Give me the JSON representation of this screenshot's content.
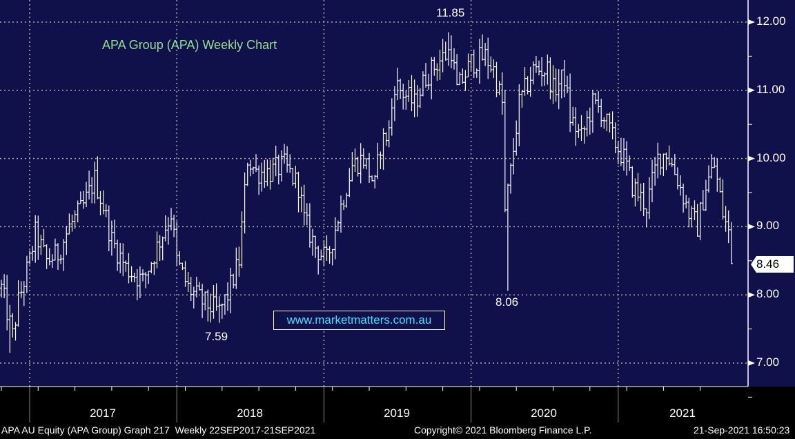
{
  "chart_data": {
    "type": "ohlc",
    "title": "APA Group (APA) Weekly Chart",
    "ylim": [
      7.0,
      12.0
    ],
    "yticks": [
      "12.00",
      "11.00",
      "10.00",
      "9.00",
      "8.00",
      "7.00"
    ],
    "ytick_values": [
      12,
      11,
      10,
      9,
      8,
      7
    ],
    "xticks": [
      "2017",
      "2018",
      "2019",
      "2020",
      "2021"
    ],
    "year_start_weeks": [
      10,
      62,
      114,
      166,
      218
    ],
    "grid": true,
    "last_price": "8.46",
    "annotations": [
      {
        "label": "11.85",
        "week": 158,
        "value": 11.85
      },
      {
        "label": "7.59",
        "week": 77,
        "value": 7.59
      },
      {
        "label": "8.06",
        "week": 178,
        "value": 8.06
      }
    ],
    "close_anchors_week_price": [
      [
        0,
        8.1
      ],
      [
        4,
        7.4
      ],
      [
        6,
        7.9
      ],
      [
        10,
        8.5
      ],
      [
        12,
        8.9
      ],
      [
        16,
        8.5
      ],
      [
        20,
        8.6
      ],
      [
        24,
        9.0
      ],
      [
        29,
        9.3
      ],
      [
        33,
        9.7
      ],
      [
        36,
        9.3
      ],
      [
        39,
        8.8
      ],
      [
        44,
        8.4
      ],
      [
        50,
        8.2
      ],
      [
        54,
        8.6
      ],
      [
        57,
        8.9
      ],
      [
        60,
        9.2
      ],
      [
        62,
        8.5
      ],
      [
        66,
        8.1
      ],
      [
        71,
        7.9
      ],
      [
        77,
        7.75
      ],
      [
        80,
        8.0
      ],
      [
        84,
        8.5
      ],
      [
        87,
        10.0
      ],
      [
        90,
        9.8
      ],
      [
        95,
        9.8
      ],
      [
        100,
        9.9
      ],
      [
        105,
        9.6
      ],
      [
        107,
        9.1
      ],
      [
        111,
        8.7
      ],
      [
        115,
        8.5
      ],
      [
        120,
        9.3
      ],
      [
        124,
        9.9
      ],
      [
        128,
        10.0
      ],
      [
        132,
        9.6
      ],
      [
        134,
        10.2
      ],
      [
        137,
        10.4
      ],
      [
        139,
        11.1
      ],
      [
        141,
        11.0
      ],
      [
        146,
        10.8
      ],
      [
        150,
        11.2
      ],
      [
        154,
        11.4
      ],
      [
        159,
        11.6
      ],
      [
        161,
        11.0
      ],
      [
        166,
        11.4
      ],
      [
        171,
        11.5
      ],
      [
        174,
        11.3
      ],
      [
        177,
        10.8
      ],
      [
        178,
        9.2
      ],
      [
        180,
        9.8
      ],
      [
        183,
        10.8
      ],
      [
        188,
        11.3
      ],
      [
        193,
        11.3
      ],
      [
        195,
        11.0
      ],
      [
        199,
        11.2
      ],
      [
        201,
        10.6
      ],
      [
        205,
        10.3
      ],
      [
        209,
        10.8
      ],
      [
        212,
        10.7
      ],
      [
        216,
        10.3
      ],
      [
        220,
        10.0
      ],
      [
        223,
        9.6
      ],
      [
        228,
        9.3
      ],
      [
        232,
        10.0
      ],
      [
        235,
        10.1
      ],
      [
        239,
        9.7
      ],
      [
        243,
        9.2
      ],
      [
        246,
        9.0
      ],
      [
        249,
        9.6
      ],
      [
        252,
        9.9
      ],
      [
        255,
        9.2
      ],
      [
        257,
        8.9
      ],
      [
        258,
        8.46
      ]
    ],
    "extremes": [
      {
        "week": 3,
        "low": 7.15
      },
      {
        "week": 77,
        "low": 7.59
      },
      {
        "week": 158,
        "high": 11.85
      },
      {
        "week": 179,
        "low": 8.06
      }
    ]
  },
  "footer": {
    "left": "APA AU Equity (APA Group) Graph 217  Weekly 22SEP2017-21SEP2021",
    "center": "Copyright© 2021 Bloomberg Finance L.P.",
    "right": "21-Sep-2021 16:50:23"
  },
  "watermark": "www.marketmatters.com.au",
  "colors": {
    "plot_bg": "#10104a",
    "bars": "#ffffff",
    "title": "#8fe08f",
    "link": "#3fe0ff"
  }
}
